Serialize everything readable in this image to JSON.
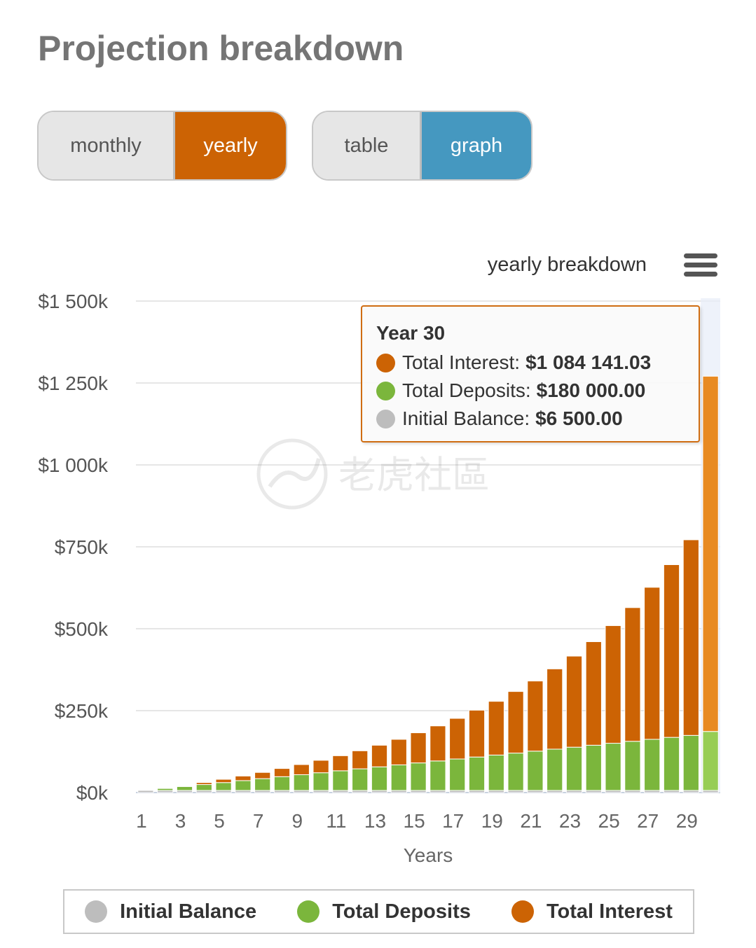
{
  "page": {
    "title": "Projection breakdown"
  },
  "period_toggle": {
    "monthly_label": "monthly",
    "yearly_label": "yearly",
    "selected": "yearly"
  },
  "view_toggle": {
    "table_label": "table",
    "graph_label": "graph",
    "selected": "graph"
  },
  "colors": {
    "interest": "#cc6304",
    "interest_highlight": "#e88a22",
    "deposits": "#7bb63c",
    "deposits_highlight": "#97cd55",
    "initial": "#bdbdbd",
    "period_active": "#cc6304",
    "view_active": "#4598c0"
  },
  "watermark": {
    "text": "老虎社區"
  },
  "chart_data": {
    "type": "bar",
    "stacked": true,
    "title": "yearly breakdown",
    "xlabel": "Years",
    "ylabel": "",
    "ylim": [
      0,
      1500000
    ],
    "y_ticks": [
      {
        "value": 0,
        "label": "$0k"
      },
      {
        "value": 250000,
        "label": "$250k"
      },
      {
        "value": 500000,
        "label": "$500k"
      },
      {
        "value": 750000,
        "label": "$750k"
      },
      {
        "value": 1000000,
        "label": "$1 000k"
      },
      {
        "value": 1250000,
        "label": "$1 250k"
      },
      {
        "value": 1500000,
        "label": "$1 500k"
      }
    ],
    "categories": [
      1,
      2,
      3,
      4,
      5,
      6,
      7,
      8,
      9,
      10,
      11,
      12,
      13,
      14,
      15,
      16,
      17,
      18,
      19,
      20,
      21,
      22,
      23,
      24,
      25,
      26,
      27,
      28,
      29,
      30
    ],
    "x_tick_labels": [
      "1",
      "3",
      "5",
      "7",
      "9",
      "11",
      "13",
      "15",
      "17",
      "19",
      "21",
      "23",
      "25",
      "27",
      "29"
    ],
    "series": [
      {
        "name": "Initial Balance",
        "values": [
          6500,
          6500,
          6500,
          6500,
          6500,
          6500,
          6500,
          6500,
          6500,
          6500,
          6500,
          6500,
          6500,
          6500,
          6500,
          6500,
          6500,
          6500,
          6500,
          6500,
          6500,
          6500,
          6500,
          6500,
          6500,
          6500,
          6500,
          6500,
          6500,
          6500
        ]
      },
      {
        "name": "Total Deposits",
        "values": [
          0,
          6000,
          12000,
          18000,
          24000,
          30000,
          36000,
          42000,
          48000,
          54000,
          60000,
          66000,
          72000,
          78000,
          84000,
          90000,
          96000,
          102000,
          108000,
          114000,
          120000,
          126000,
          132000,
          138000,
          144000,
          150000,
          156000,
          162000,
          168000,
          180000
        ]
      },
      {
        "name": "Total Interest",
        "values": [
          0,
          0,
          2000,
          6000,
          10000,
          14000,
          19000,
          25000,
          31000,
          38000,
          46000,
          55000,
          66000,
          78000,
          92000,
          107000,
          124000,
          143000,
          164000,
          188000,
          214000,
          245000,
          278000,
          316000,
          359000,
          408000,
          464000,
          527000,
          597000,
          1084141.03
        ]
      }
    ],
    "legend": {
      "position": "bottom",
      "entries": [
        "Initial Balance",
        "Total Deposits",
        "Total Interest"
      ]
    },
    "tooltip": {
      "title": "Year 30",
      "rows": [
        {
          "label": "Total Interest:",
          "value": "$1 084 141.03"
        },
        {
          "label": "Total Deposits:",
          "value": "$180 000.00"
        },
        {
          "label": "Initial Balance:",
          "value": "$6 500.00"
        }
      ]
    },
    "highlighted_category": 30
  }
}
